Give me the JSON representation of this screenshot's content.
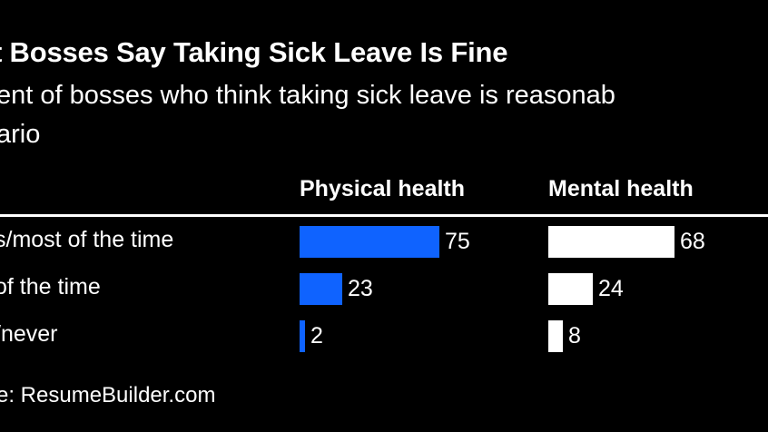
{
  "chart_data": {
    "type": "bar",
    "title": "t Bosses Say Taking Sick Leave Is Fine",
    "subtitle": [
      "ent of bosses who think taking sick leave is reasonab",
      "ario"
    ],
    "categories": [
      "s/most of the time",
      "of the time",
      "/never"
    ],
    "series": [
      {
        "name": "Physical health",
        "values": [
          75,
          23,
          2
        ],
        "color": "#0f63ff"
      },
      {
        "name": "Mental health",
        "values": [
          68,
          24,
          8
        ],
        "color": "#ffffff"
      }
    ],
    "xlim": [
      0,
      100
    ],
    "grid": false,
    "source": "e: ResumeBuilder.com"
  },
  "colors": {
    "background": "#000000",
    "text": "#ffffff"
  }
}
